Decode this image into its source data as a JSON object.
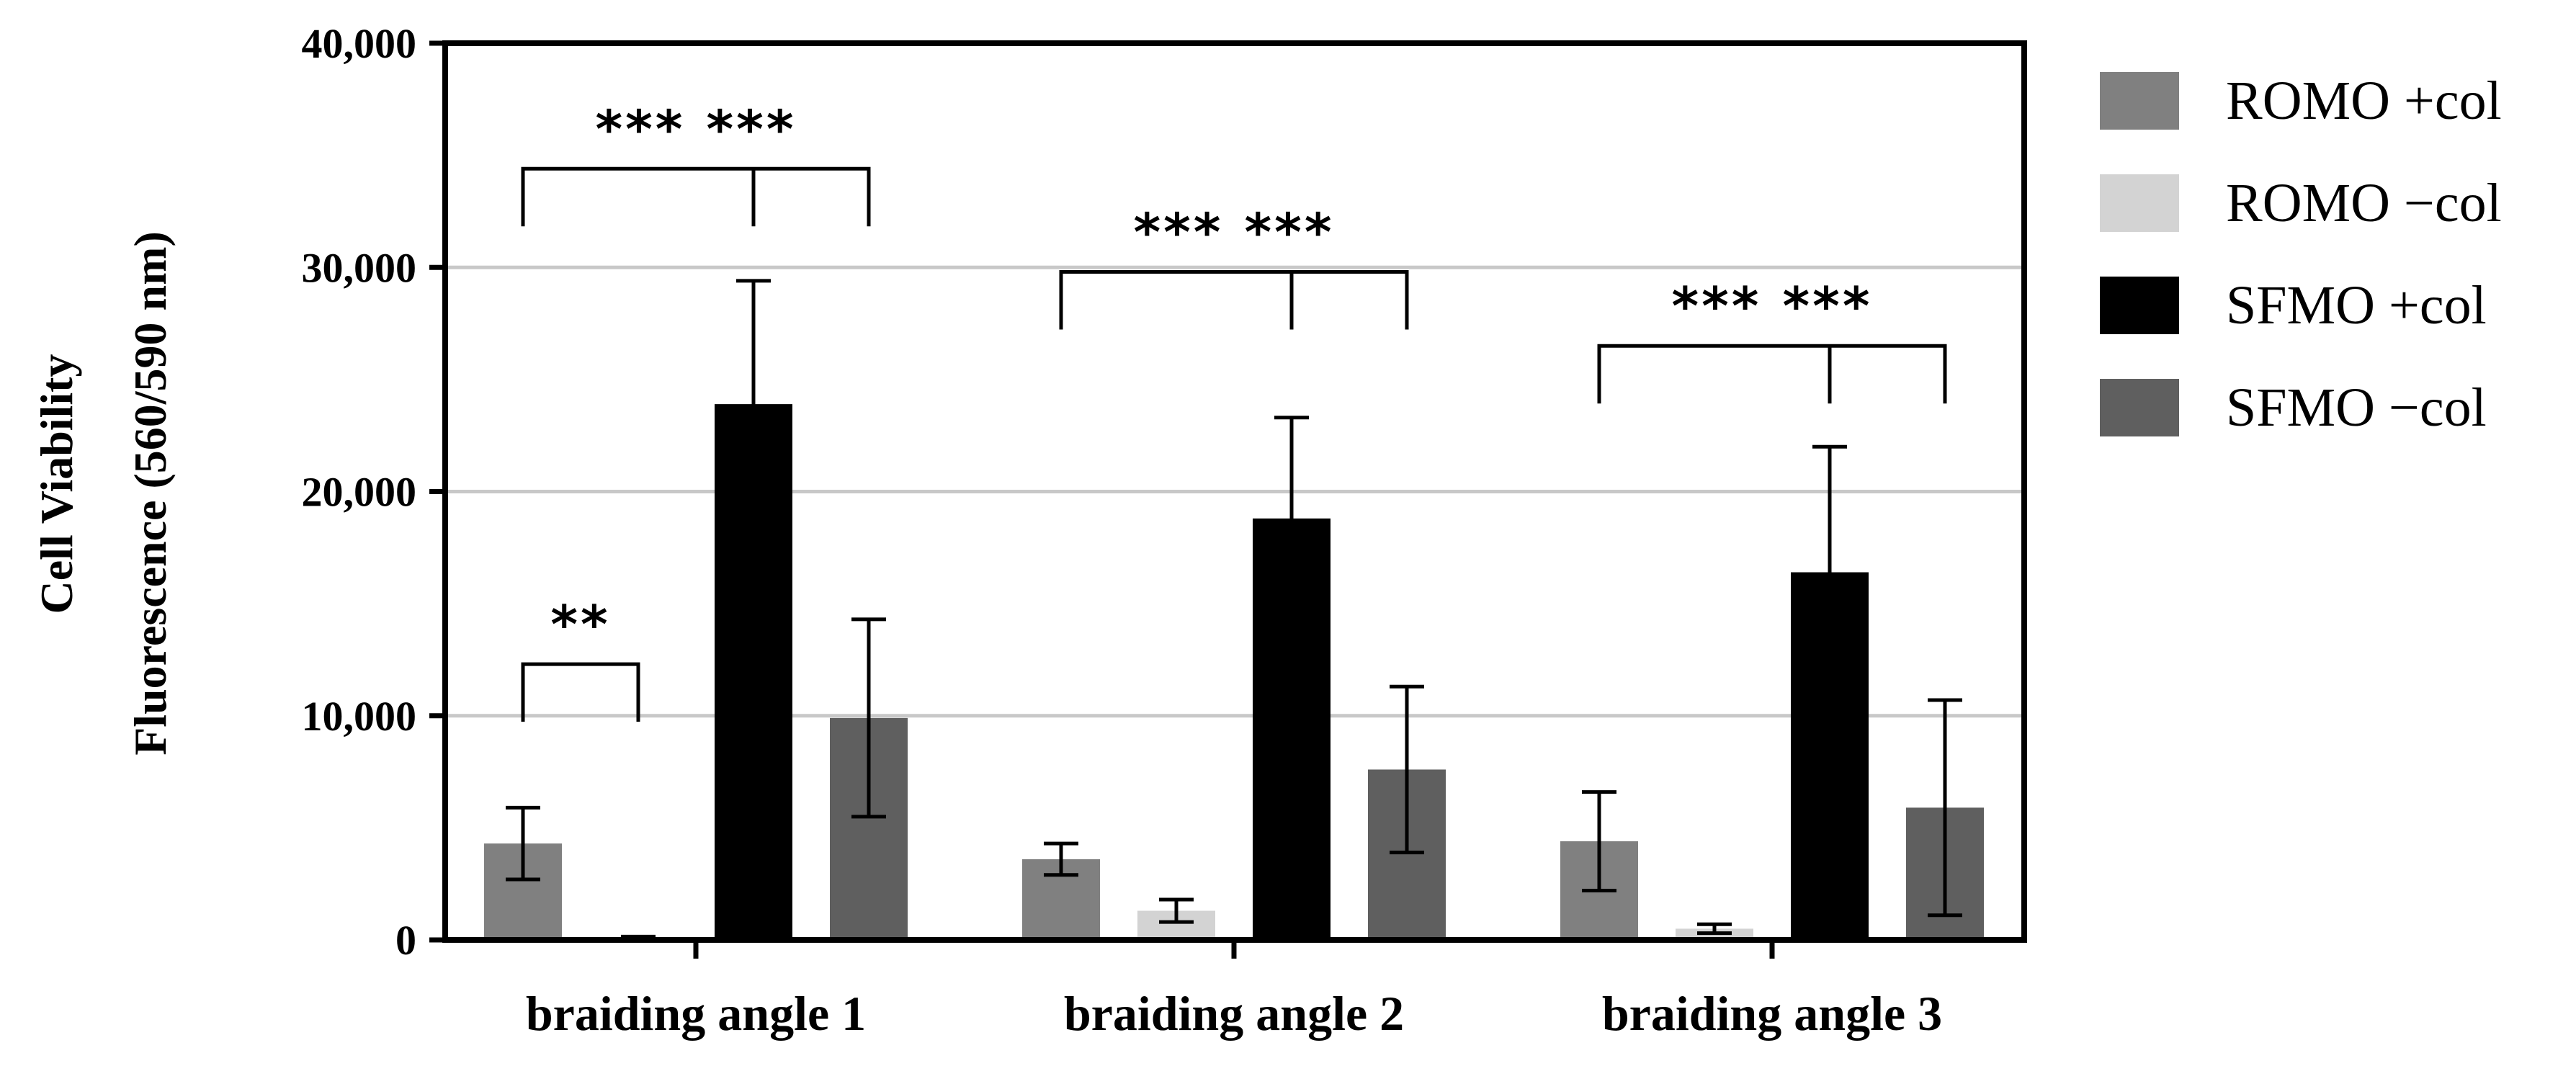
{
  "chart_data": {
    "type": "bar",
    "title": "",
    "xlabel": "",
    "ylabel_line1": "Cell  Viability",
    "ylabel_line2": "Fluorescence (560/590 nm)",
    "ylim": [
      0,
      40000
    ],
    "yticks": [
      0,
      10000,
      20000,
      30000,
      40000
    ],
    "ytick_labels": [
      "0",
      "10,000",
      "20,000",
      "30,000",
      "40,000"
    ],
    "grid": true,
    "legend_position": "right",
    "categories": [
      "braiding angle 1",
      "braiding angle 2",
      "braiding angle 3"
    ],
    "series": [
      {
        "name": "ROMO +col",
        "color": "#808080",
        "values": [
          4300,
          3600,
          4400
        ],
        "errors": [
          1600,
          700,
          2200
        ]
      },
      {
        "name": "ROMO −col",
        "color": "#d3d3d3",
        "values": [
          100,
          1300,
          500
        ],
        "errors": [
          50,
          500,
          200
        ]
      },
      {
        "name": "SFMO +col",
        "color": "#000000",
        "values": [
          23900,
          18800,
          16400
        ],
        "errors": [
          5500,
          4500,
          5600
        ]
      },
      {
        "name": "SFMO −col",
        "color": "#5f5f5f",
        "values": [
          9900,
          7600,
          5900
        ],
        "errors": [
          4400,
          3700,
          4800
        ]
      }
    ],
    "significance": [
      {
        "category": 0,
        "from_series": 0,
        "to_series": 1,
        "label": "**",
        "y": 12300
      },
      {
        "category": 0,
        "from_series": 0,
        "to_series": 3,
        "mid_series": 2,
        "label": "*** ***",
        "y": 34400
      },
      {
        "category": 1,
        "from_series": 0,
        "to_series": 3,
        "mid_series": 2,
        "label": "*** ***",
        "y": 29800
      },
      {
        "category": 2,
        "from_series": 0,
        "to_series": 3,
        "mid_series": 2,
        "label": "*** ***",
        "y": 26500
      }
    ]
  }
}
